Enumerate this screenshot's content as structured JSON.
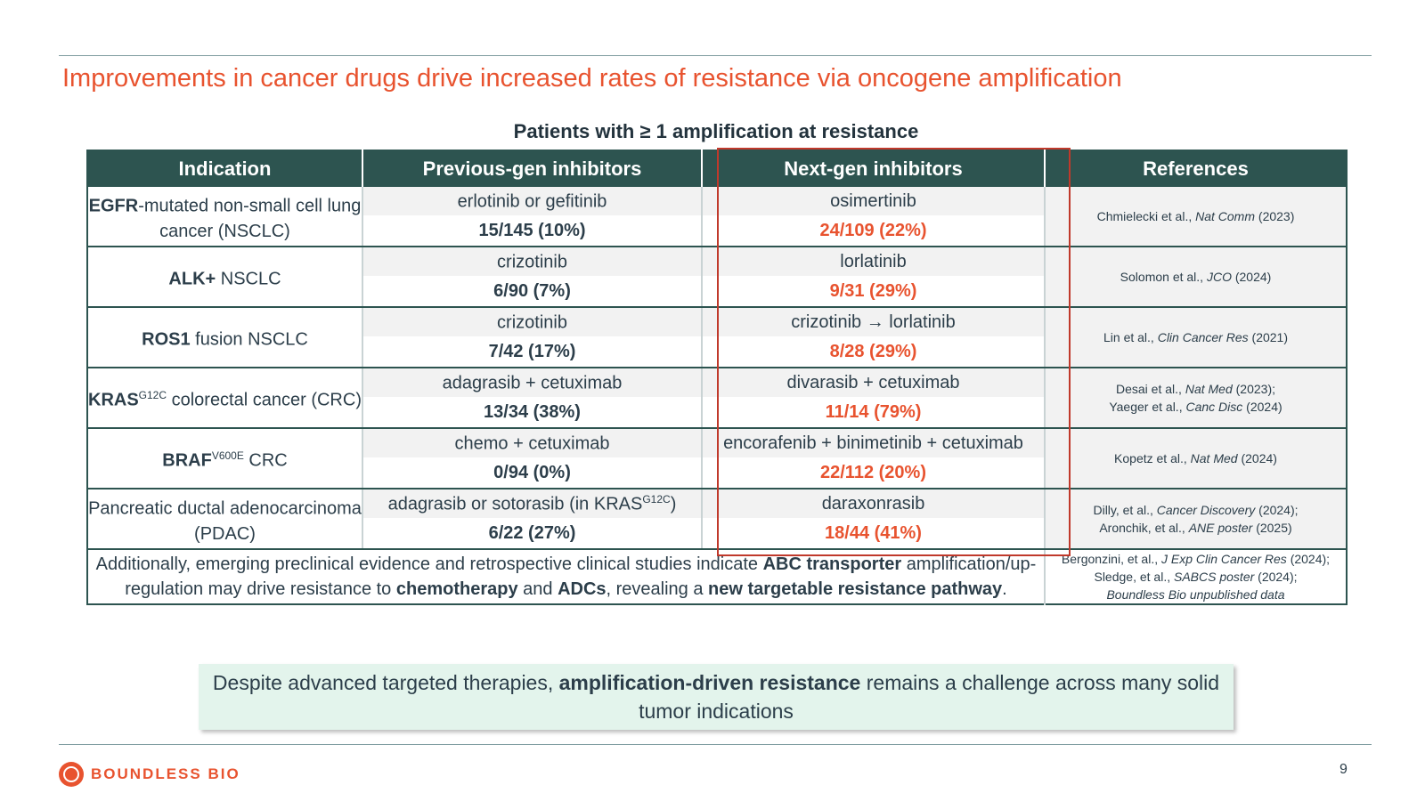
{
  "title": "Improvements in cancer drugs drive increased rates of resistance via oncogene amplification",
  "table_title": "Patients with ≥ 1 amplification at resistance",
  "headers": [
    "Indication",
    "Previous-gen inhibitors",
    "Next-gen inhibitors",
    "References"
  ],
  "rows": [
    {
      "ind_bold": "EGFR",
      "ind_sup": "",
      "ind_rest": "-mutated non-small cell lung cancer (NSCLC)",
      "prev_drug": "erlotinib or gefitinib",
      "prev_sup": "",
      "prev_after": "",
      "prev_val": "15/145 (10%)",
      "next_drug": "osimertinib",
      "next_val": "24/109 (22%)",
      "ref_lines": [
        {
          "pre": "Chmielecki et al., ",
          "journal": "Nat Comm",
          "post": " (2023)"
        }
      ]
    },
    {
      "ind_bold": "ALK+",
      "ind_sup": "",
      "ind_rest": " NSCLC",
      "prev_drug": "crizotinib",
      "prev_sup": "",
      "prev_after": "",
      "prev_val": "6/90 (7%)",
      "next_drug": "lorlatinib",
      "next_val": "9/31 (29%)",
      "ref_lines": [
        {
          "pre": "Solomon et al., ",
          "journal": "JCO",
          "post": " (2024)"
        }
      ]
    },
    {
      "ind_bold": "ROS1",
      "ind_sup": "",
      "ind_rest": " fusion NSCLC",
      "prev_drug": "crizotinib",
      "prev_sup": "",
      "prev_after": "",
      "prev_val": "7/42 (17%)",
      "next_drug": "crizotinib → lorlatinib",
      "next_val": "8/28 (29%)",
      "ref_lines": [
        {
          "pre": "Lin et al., ",
          "journal": "Clin Cancer Res",
          "post": " (2021)"
        }
      ]
    },
    {
      "ind_bold": "KRAS",
      "ind_sup": "G12C",
      "ind_rest": " colorectal cancer (CRC)",
      "prev_drug": "adagrasib + cetuximab",
      "prev_sup": "",
      "prev_after": "",
      "prev_val": "13/34 (38%)",
      "next_drug": "divarasib + cetuximab",
      "next_val": "11/14 (79%)",
      "ref_lines": [
        {
          "pre": "Desai et al., ",
          "journal": "Nat Med",
          "post": " (2023);"
        },
        {
          "pre": "Yaeger et al., ",
          "journal": "Canc Disc",
          "post": " (2024)"
        }
      ]
    },
    {
      "ind_bold": "BRAF",
      "ind_sup": "V600E",
      "ind_rest": " CRC",
      "prev_drug": "chemo + cetuximab",
      "prev_sup": "",
      "prev_after": "",
      "prev_val": "0/94 (0%)",
      "next_drug": "encorafenib + binimetinib + cetuximab",
      "next_val": "22/112 (20%)",
      "ref_lines": [
        {
          "pre": "Kopetz et al., ",
          "journal": "Nat Med",
          "post": " (2024)"
        }
      ]
    },
    {
      "ind_bold": "",
      "ind_sup": "",
      "ind_rest": "Pancreatic ductal adenocarcinoma (PDAC)",
      "prev_drug": "adagrasib or sotorasib (in KRAS",
      "prev_sup": "G12C",
      "prev_after": ")",
      "prev_val": "6/22 (27%)",
      "next_drug": "daraxonrasib",
      "next_val": "18/44 (41%)",
      "ref_lines": [
        {
          "pre": "Dilly, et al., ",
          "journal": "Cancer Discovery",
          "post": " (2024);"
        },
        {
          "pre": "Aronchik, et al., ",
          "journal": "ANE poster",
          "post": " (2025)"
        }
      ]
    }
  ],
  "note": {
    "t1": "Additionally, emerging preclinical evidence and retrospective clinical studies indicate ",
    "b1": "ABC transporter",
    "t2": " amplification/up-regulation may drive resistance to ",
    "b2": "chemotherapy",
    "t3": " and ",
    "b3": "ADCs",
    "t4": ", revealing a ",
    "b4": "new targetable resistance pathway",
    "t5": ".",
    "ref1_pre": "Bergonzini, et al., ",
    "ref1_journal": "J Exp Clin Cancer Res",
    "ref1_post": " (2024);",
    "ref2_pre": "Sledge, et al., ",
    "ref2_journal": "SABCS poster",
    "ref2_post": " (2024);",
    "ref3": "Boundless Bio unpublished data"
  },
  "callout": {
    "t1": "Despite advanced targeted therapies, ",
    "b1": "amplification-driven resistance",
    "t2": " remains a challenge across many solid tumor indications"
  },
  "logo_text": "BOUNDLESS BIO",
  "page_number": "9",
  "colors": {
    "accent": "#e8532f",
    "header_bg": "#2d5450",
    "highlight_box": "#c0392b",
    "callout_bg": "#e3f4ec"
  }
}
